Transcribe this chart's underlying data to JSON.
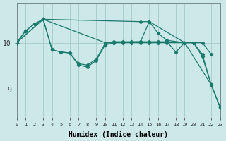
{
  "xlabel": "Humidex (Indice chaleur)",
  "bg_color": "#cce8e8",
  "line_color": "#1a7a6e",
  "grid_color": "#aacfcf",
  "xmin": 0,
  "xmax": 23,
  "ymin": 8.4,
  "ymax": 10.85,
  "yticks": [
    9,
    10
  ],
  "series1_x": [
    0,
    1,
    2,
    3,
    4,
    5,
    6,
    7,
    8,
    9,
    10,
    11,
    12,
    13,
    14,
    15,
    16,
    17,
    18,
    19,
    20,
    21,
    22,
    23
  ],
  "series1_y": [
    10.0,
    10.25,
    10.4,
    10.5,
    9.85,
    9.8,
    9.78,
    9.55,
    9.52,
    9.65,
    9.98,
    10.02,
    10.02,
    10.02,
    10.02,
    10.02,
    10.02,
    10.02,
    9.8,
    10.0,
    10.0,
    9.75,
    9.1,
    8.62
  ],
  "series2_x": [
    0,
    3,
    10,
    11,
    12,
    13,
    14,
    15,
    16,
    17,
    19,
    20,
    21,
    22
  ],
  "series2_y": [
    10.0,
    10.5,
    10.0,
    10.0,
    10.0,
    10.0,
    10.0,
    10.0,
    10.0,
    10.0,
    10.0,
    10.0,
    10.0,
    9.75
  ],
  "series3_x": [
    0,
    1,
    2,
    3,
    14,
    15,
    16,
    17,
    19,
    20,
    21,
    22,
    23
  ],
  "series3_y": [
    10.0,
    10.25,
    10.4,
    10.5,
    10.45,
    10.45,
    10.2,
    10.05,
    10.0,
    10.0,
    9.7,
    9.1,
    8.62
  ],
  "series4_x": [
    0,
    3,
    4,
    5,
    6,
    7,
    8,
    9,
    10,
    11,
    14,
    15,
    19,
    22,
    23
  ],
  "series4_y": [
    10.0,
    10.5,
    9.85,
    9.8,
    9.78,
    9.52,
    9.48,
    9.62,
    9.95,
    10.0,
    10.02,
    10.45,
    10.0,
    9.1,
    8.62
  ]
}
